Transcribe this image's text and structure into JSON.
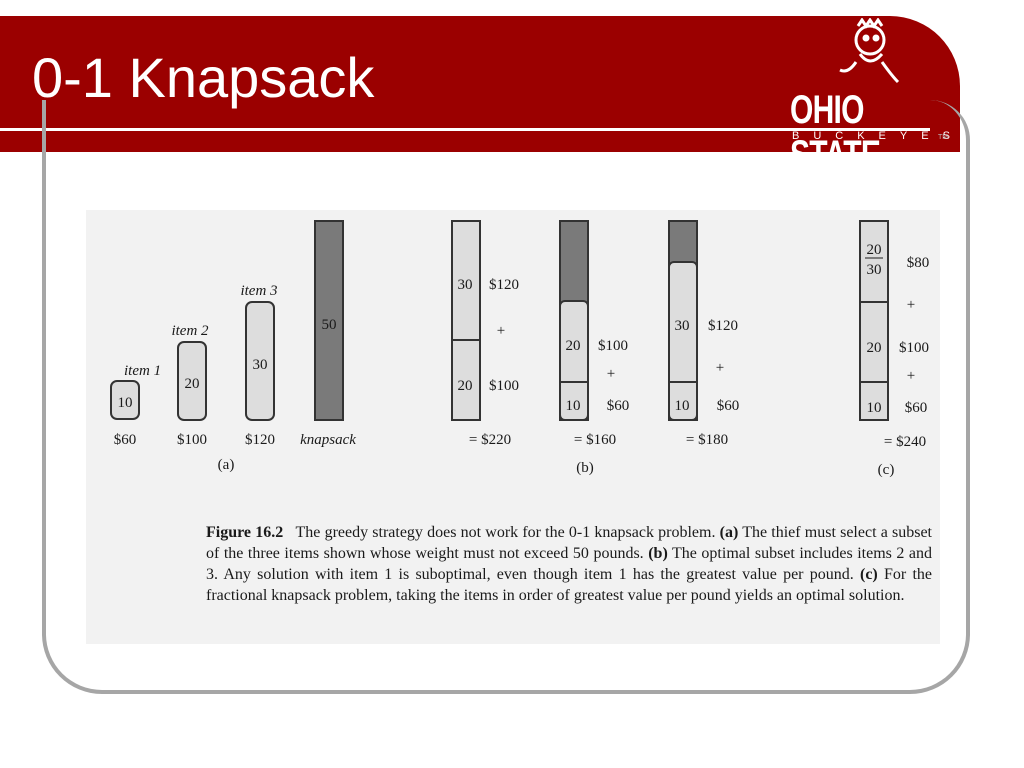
{
  "slide": {
    "title": "0-1 Knapsack"
  },
  "logo": {
    "word": "OHIO STATE",
    "sub": "BUCKEYES",
    "tm": "TM"
  },
  "figure": {
    "panel_a": {
      "label": "(a)",
      "items": [
        {
          "name": "item 1",
          "weight": "10",
          "value": "$60"
        },
        {
          "name": "item 2",
          "weight": "20",
          "value": "$100"
        },
        {
          "name": "item 3",
          "weight": "30",
          "value": "$120"
        }
      ],
      "knapsack": {
        "capacity": "50",
        "name": "knapsack"
      }
    },
    "panel_b": {
      "label": "(b)",
      "solutions": [
        {
          "parts": [
            {
              "w": "30",
              "v": "$120"
            },
            {
              "w": "20",
              "v": "$100"
            }
          ],
          "plus": "+",
          "total": "= $220"
        },
        {
          "parts": [
            {
              "w": "20",
              "v": "$100"
            },
            {
              "w": "10",
              "v": "$60"
            }
          ],
          "plus": "+",
          "total": "= $160"
        },
        {
          "parts": [
            {
              "w": "30",
              "v": "$120"
            },
            {
              "w": "10",
              "v": "$60"
            }
          ],
          "plus": "+",
          "total": "= $180"
        }
      ]
    },
    "panel_c": {
      "label": "(c)",
      "fraction_num": "20",
      "fraction_den": "30",
      "parts": [
        {
          "w": "",
          "v": "$80"
        },
        {
          "w": "20",
          "v": "$100"
        },
        {
          "w": "10",
          "v": "$60"
        }
      ],
      "plus": "+",
      "total": "= $240"
    },
    "caption": {
      "lead": "Figure 16.2",
      "t1": "The greedy strategy does not work for the 0-1 knapsack problem.",
      "a": "(a)",
      "t2": "The thief must select a subset of the three items shown whose weight must not exceed 50 pounds.",
      "b": "(b)",
      "t3": "The optimal subset includes items 2 and 3. Any solution with item 1 is suboptimal, even though item 1 has the greatest value per pound.",
      "c": "(c)",
      "t4": "For the fractional knapsack problem, taking the items in order of greatest value per pound yields an optimal solution."
    }
  }
}
